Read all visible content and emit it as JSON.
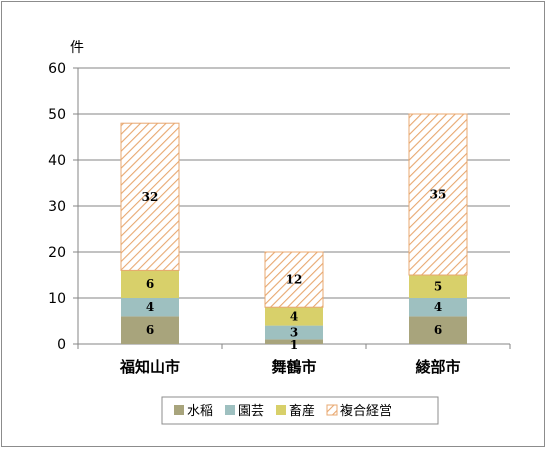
{
  "chart_data": {
    "type": "bar",
    "stacked": true,
    "unit_label": "件",
    "categories": [
      "福知山市",
      "舞鶴市",
      "綾部市"
    ],
    "series": [
      {
        "name": "水稲",
        "values": [
          6,
          1,
          6
        ],
        "color": "#a8a47c",
        "pattern": "solid"
      },
      {
        "name": "園芸",
        "values": [
          4,
          3,
          4
        ],
        "color": "#9ec0c0",
        "pattern": "solid"
      },
      {
        "name": "畜産",
        "values": [
          6,
          4,
          5
        ],
        "color": "#d8d06a",
        "pattern": "solid"
      },
      {
        "name": "複合経営",
        "values": [
          32,
          12,
          35
        ],
        "color": "#e8a870",
        "pattern": "hatch"
      }
    ],
    "ylim": [
      0,
      60
    ],
    "yticks": [
      0,
      10,
      20,
      30,
      40,
      50,
      60
    ],
    "grid": true,
    "legend_position": "bottom"
  }
}
